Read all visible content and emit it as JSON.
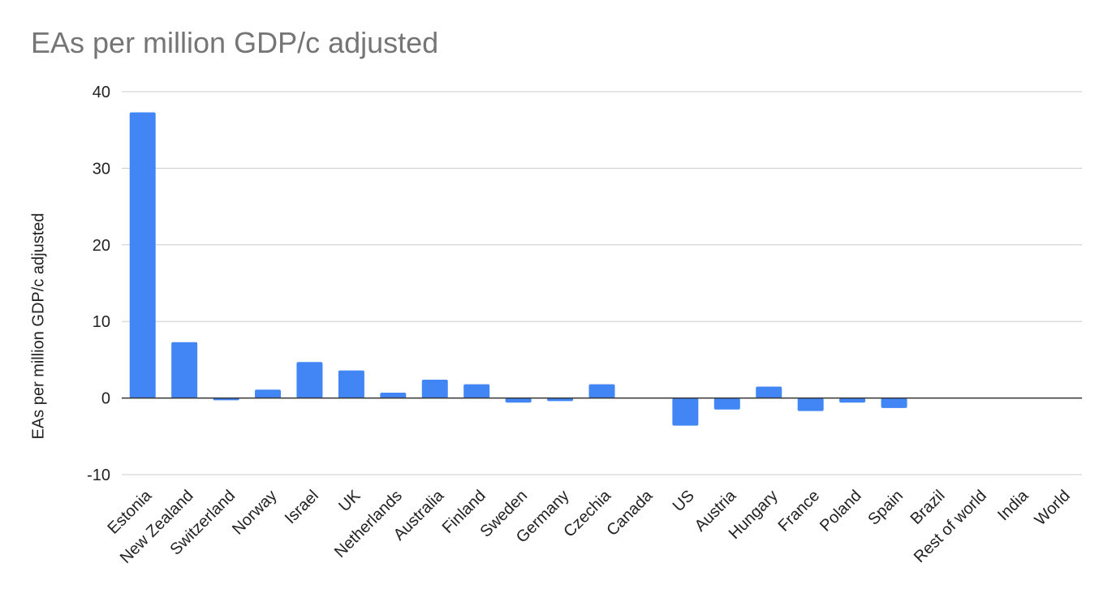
{
  "chart_data": {
    "type": "bar",
    "title": "EAs per million GDP/c adjusted",
    "xlabel": "",
    "ylabel": "EAs per million GDP/c adjusted",
    "ylim": [
      -10,
      40
    ],
    "yticks": [
      -10,
      0,
      10,
      20,
      30,
      40
    ],
    "grid": true,
    "legend": "none",
    "bar_color": "#4285f4",
    "categories": [
      "Estonia",
      "New Zealand",
      "Switzerland",
      "Norway",
      "Israel",
      "UK",
      "Netherlands",
      "Australia",
      "Finland",
      "Sweden",
      "Germany",
      "Czechia",
      "Canada",
      "US",
      "Austria",
      "Hungary",
      "France",
      "Poland",
      "Spain",
      "Brazil",
      "Rest of world",
      "India",
      "World"
    ],
    "values": [
      37.3,
      7.3,
      -0.3,
      1.1,
      4.7,
      3.6,
      0.7,
      2.4,
      1.8,
      -0.6,
      -0.4,
      1.8,
      0.0,
      -3.6,
      -1.5,
      1.5,
      -1.7,
      -0.6,
      -1.3,
      0.0,
      0.0,
      0.0,
      0.0
    ]
  }
}
